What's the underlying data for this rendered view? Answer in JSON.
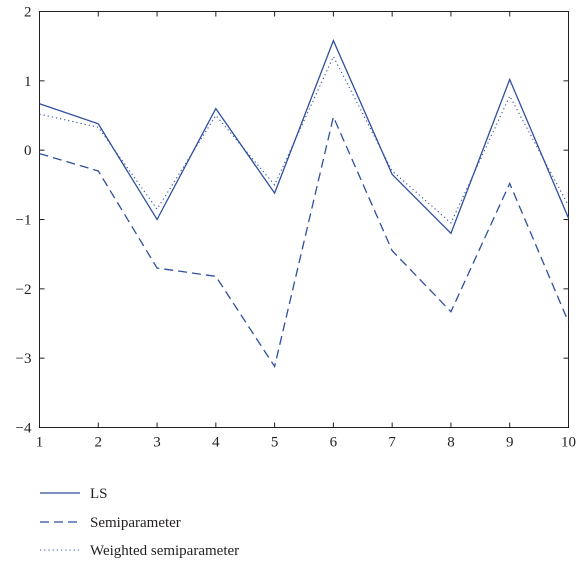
{
  "chart_data": {
    "type": "line",
    "title": "",
    "xlabel": "",
    "ylabel": "",
    "x": [
      1,
      2,
      3,
      4,
      5,
      6,
      7,
      8,
      9,
      10
    ],
    "xlim": [
      1,
      10
    ],
    "ylim": [
      -4,
      2
    ],
    "xticks": [
      1,
      2,
      3,
      4,
      5,
      6,
      7,
      8,
      9,
      10
    ],
    "yticks": [
      -4,
      -3,
      -2,
      -1,
      0,
      1,
      2
    ],
    "ytick_labels": [
      "−4",
      "−3",
      "−2",
      "−1",
      "0",
      "1",
      "2"
    ],
    "grid": false,
    "legend_position": "bottom-left, below plot",
    "series": [
      {
        "name": "LS",
        "style": "solid",
        "color": "#2f4f9f",
        "values": [
          0.67,
          0.38,
          -1.0,
          0.6,
          -0.62,
          1.58,
          -0.35,
          -1.2,
          1.02,
          -0.98
        ]
      },
      {
        "name": "Semiparameter",
        "style": "dashed",
        "color": "#2f4f9f",
        "values": [
          -0.05,
          -0.3,
          -1.7,
          -1.82,
          -3.12,
          0.48,
          -1.45,
          -2.33,
          -0.48,
          -2.48
        ]
      },
      {
        "name": "Weighted semiparameter",
        "style": "dotted",
        "color": "#2f4f9f",
        "values": [
          0.52,
          0.33,
          -0.85,
          0.5,
          -0.5,
          1.35,
          -0.3,
          -1.05,
          0.78,
          -0.8
        ]
      }
    ]
  }
}
